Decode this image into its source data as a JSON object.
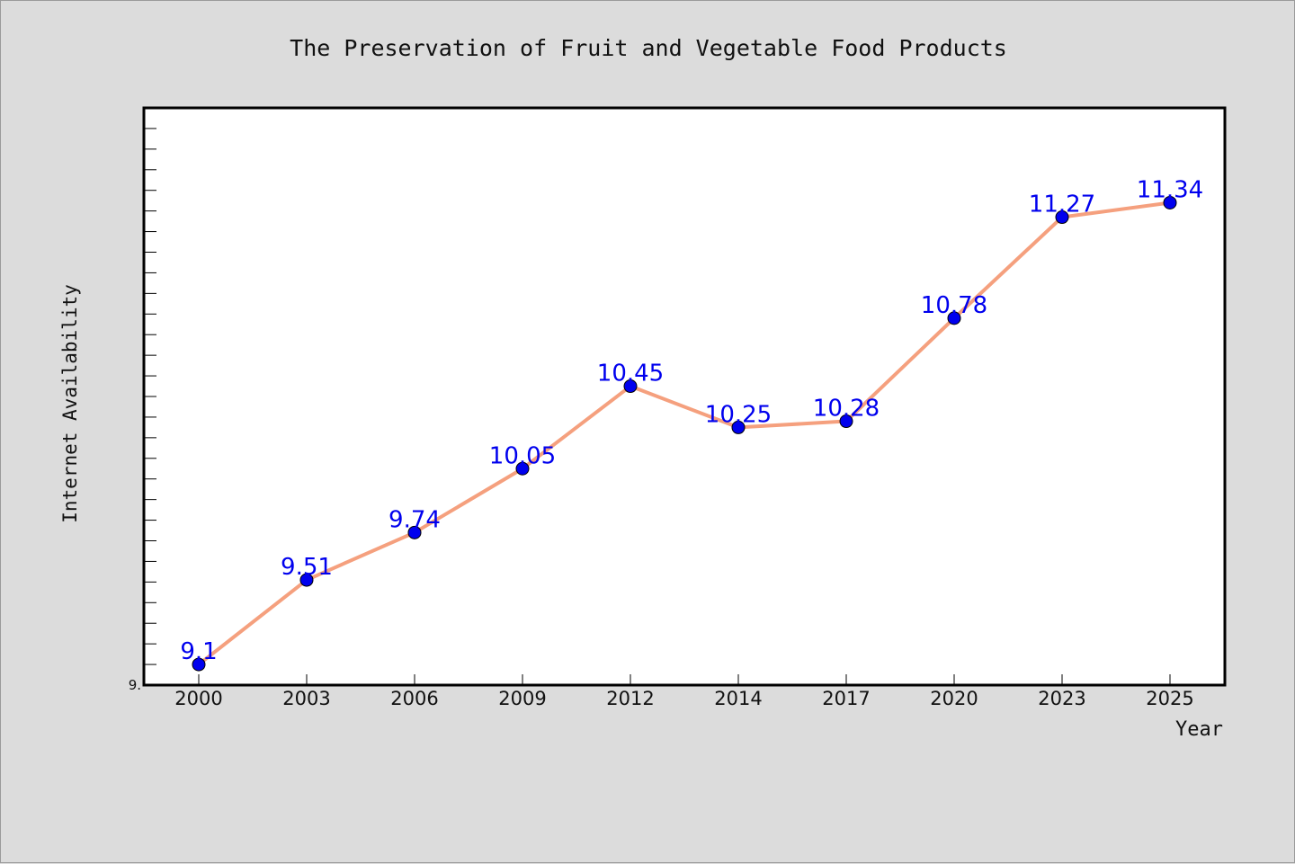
{
  "chart_data": {
    "type": "line",
    "title": "The Preservation of Fruit and Vegetable Food Products",
    "xlabel": "Year",
    "ylabel": "Internet Availability",
    "y_tick_label": "9.",
    "categories": [
      "2000",
      "2003",
      "2006",
      "2009",
      "2012",
      "2014",
      "2017",
      "2020",
      "2023",
      "2025"
    ],
    "series": [
      {
        "values": [
          9.1,
          9.51,
          9.74,
          10.05,
          10.45,
          10.25,
          10.28,
          10.78,
          11.27,
          11.34
        ],
        "labels": [
          "9.1",
          "9.51",
          "9.74",
          "10.05",
          "10.45",
          "10.25",
          "10.28",
          "10.78",
          "11.27",
          "11.34"
        ]
      }
    ],
    "ylim": [
      9.0,
      11.8
    ],
    "grid": false,
    "line_color": "#f5a07e",
    "marker_color": "#0000ee",
    "label_color": "#0000ee"
  }
}
